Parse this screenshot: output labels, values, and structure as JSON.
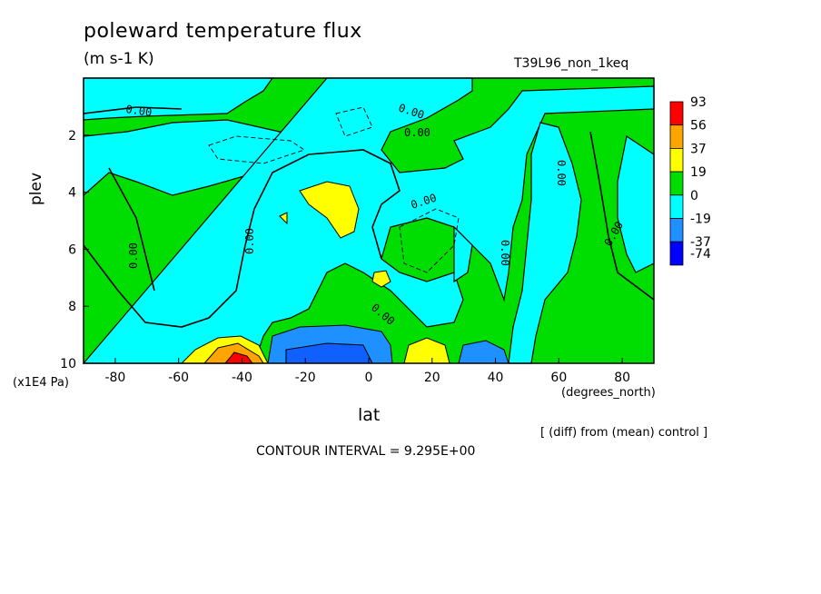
{
  "header": {
    "title": "poleward temperature flux",
    "units": "(m s-1 K)",
    "run": "T39L96_non_1keq"
  },
  "footer": {
    "contour_interval": "CONTOUR INTERVAL = 9.295E+00",
    "diff_note": "[ (diff) from (mean) control ]"
  },
  "chart_data": {
    "type": "heatmap",
    "title": "poleward temperature flux",
    "subtitle": "(m s-1 K)",
    "xlabel": "lat",
    "x_units": "(degrees_north)",
    "ylabel": "plev",
    "y_units": "(x1E4 Pa)",
    "xlim": [
      -90,
      90
    ],
    "ylim": [
      10,
      0
    ],
    "x_ticks": [
      -80,
      -60,
      -40,
      -20,
      0,
      20,
      40,
      60,
      80
    ],
    "y_ticks": [
      2,
      4,
      6,
      8,
      10
    ],
    "contour_labels": [
      "0.00"
    ],
    "colorbar": {
      "levels": [
        "93",
        "56",
        "37",
        "19",
        "0",
        "-19",
        "-37",
        "-74"
      ],
      "colors": [
        "#ff0000",
        "#ffa500",
        "#ffff00",
        "#00dd00",
        "#00ffff",
        "#1e90ff",
        "#0000ff"
      ]
    },
    "regions": [
      {
        "kind": "warm",
        "label": "19",
        "center": [
          -15,
          4.3
        ]
      },
      {
        "kind": "warm",
        "label": "56",
        "center": [
          -40,
          9.8
        ]
      },
      {
        "kind": "warm",
        "label": "19",
        "center": [
          20,
          9.6
        ]
      },
      {
        "kind": "cold",
        "label": "-37",
        "center": [
          -15,
          9.5
        ]
      },
      {
        "kind": "cold",
        "label": "-19",
        "center": [
          38,
          9.6
        ]
      }
    ]
  }
}
